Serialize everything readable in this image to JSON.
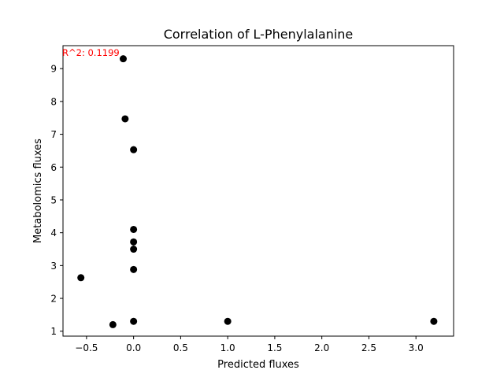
{
  "chart_data": {
    "type": "scatter",
    "title": "Correlation of L-Phenylalanine",
    "xlabel": "Predicted fluxes",
    "ylabel": "Metabolomics fluxes",
    "annotation": "R^2: 0.1199",
    "annotation_color": "#ff0000",
    "marker_color": "#000000",
    "xlim": [
      -0.75,
      3.4
    ],
    "ylim": [
      0.85,
      9.7
    ],
    "xticks": [
      -0.5,
      0.0,
      0.5,
      1.0,
      1.5,
      2.0,
      2.5,
      3.0
    ],
    "xtick_labels": [
      "−0.5",
      "0.0",
      "0.5",
      "1.0",
      "1.5",
      "2.0",
      "2.5",
      "3.0"
    ],
    "yticks": [
      1,
      2,
      3,
      4,
      5,
      6,
      7,
      8,
      9
    ],
    "ytick_labels": [
      "1",
      "2",
      "3",
      "4",
      "5",
      "6",
      "7",
      "8",
      "9"
    ],
    "grid": false,
    "points": [
      {
        "x": -0.11,
        "y": 9.3
      },
      {
        "x": -0.09,
        "y": 7.47
      },
      {
        "x": 0.0,
        "y": 6.53
      },
      {
        "x": 0.0,
        "y": 4.1
      },
      {
        "x": 0.0,
        "y": 3.72
      },
      {
        "x": 0.0,
        "y": 3.5
      },
      {
        "x": 0.0,
        "y": 2.88
      },
      {
        "x": -0.56,
        "y": 2.63
      },
      {
        "x": 0.0,
        "y": 1.3
      },
      {
        "x": -0.22,
        "y": 1.2
      },
      {
        "x": 1.0,
        "y": 1.3
      },
      {
        "x": 3.19,
        "y": 1.3
      }
    ]
  }
}
